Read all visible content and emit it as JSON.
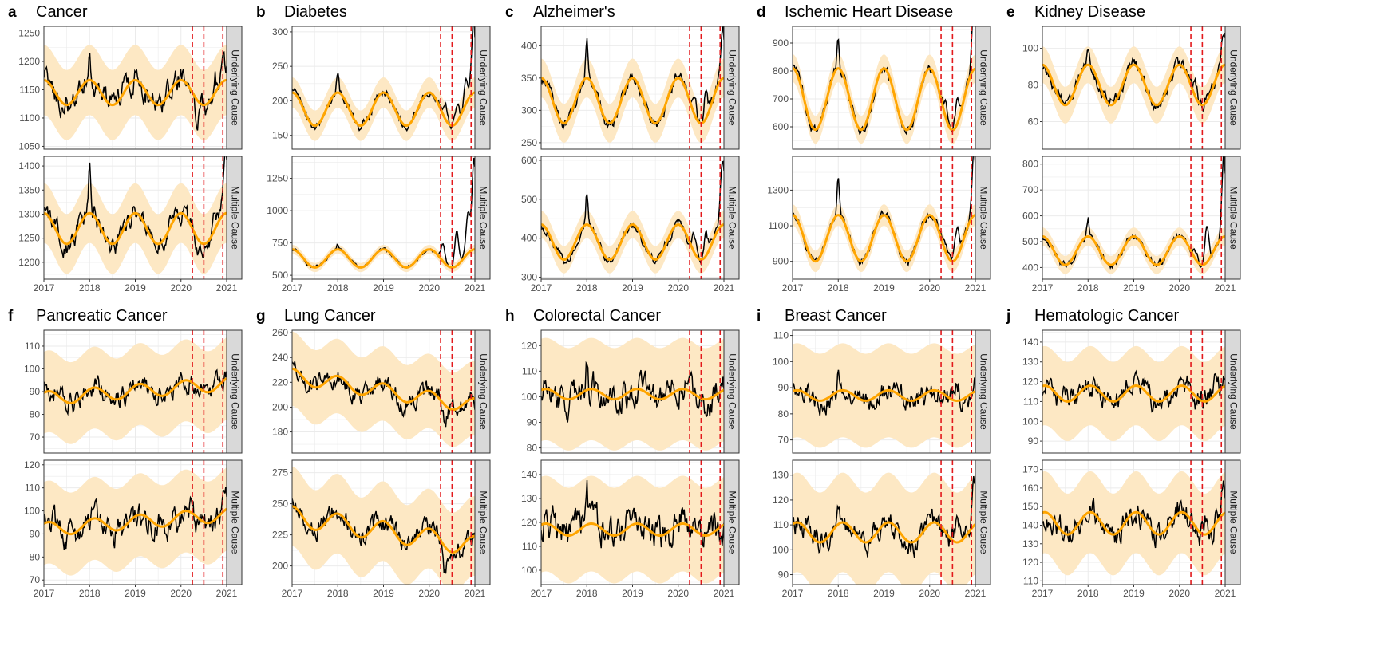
{
  "chart_data": {
    "type": "line",
    "layout": "faceted grid: 2 rows of 5 panels, each panel has 2 stacked facets",
    "x_axis": {
      "ticks": [
        "2017",
        "2018",
        "2019",
        "2020",
        "2021"
      ],
      "range": [
        "2017-01",
        "2021-01"
      ]
    },
    "facets": [
      "Underlying Cause",
      "Multiple Cause"
    ],
    "pandemic_lines": [
      "2020-04",
      "2020-07",
      "2020-12"
    ],
    "colors": {
      "observed": "#000000",
      "expected": "#ffa500",
      "prediction_band": "#fde8c4",
      "vlines": "#e3191c",
      "strip": "#d9d9d9",
      "grid": "#ebebeb"
    },
    "series_descriptions": {
      "observed": "weekly observed deaths (black line)",
      "expected": "expected seasonal baseline (orange line)",
      "band": "prediction interval (light orange band)"
    },
    "panels": [
      {
        "letter": "a",
        "title": "Cancer",
        "facets": [
          {
            "label": "Underlying Cause",
            "yticks": [
              1050,
              1100,
              1150,
              1200,
              1250
            ],
            "ylim": [
              1045,
              1262
            ],
            "base": 1145,
            "trend": 0,
            "amp": 22,
            "phase": 0.1,
            "band": 62,
            "noise": 18,
            "spikes": [
              [
                2018.0,
                75
              ]
            ],
            "pandemic": [
              [
                2020.35,
                -45
              ],
              [
                2020.75,
                20
              ],
              [
                2020.95,
                30
              ]
            ]
          },
          {
            "label": "Multiple Cause",
            "yticks": [
              1200,
              1250,
              1300,
              1350,
              1400
            ],
            "ylim": [
              1165,
              1420
            ],
            "base": 1270,
            "trend": 0,
            "amp": 32,
            "phase": 0.1,
            "band": 62,
            "noise": 18,
            "spikes": [
              [
                2018.0,
                90
              ]
            ],
            "pandemic": [
              [
                2020.4,
                -30
              ],
              [
                2020.75,
                35
              ],
              [
                2020.97,
                130
              ]
            ]
          }
        ]
      },
      {
        "letter": "b",
        "title": "Diabetes",
        "facets": [
          {
            "label": "Underlying Cause",
            "yticks": [
              150,
              200,
              250,
              300
            ],
            "ylim": [
              130,
              308
            ],
            "base": 188,
            "trend": 0,
            "amp": 24,
            "phase": 0.1,
            "band": 22,
            "noise": 5,
            "spikes": [
              [
                2018.0,
                30
              ]
            ],
            "pandemic": [
              [
                2020.35,
                25
              ],
              [
                2020.6,
                25
              ],
              [
                2020.8,
                35
              ],
              [
                2020.97,
                110
              ]
            ]
          },
          {
            "label": "Multiple Cause",
            "yticks": [
              500,
              750,
              1000,
              1250
            ],
            "ylim": [
              470,
              1420
            ],
            "base": 630,
            "trend": 0,
            "amp": 70,
            "phase": 0.1,
            "band": 35,
            "noise": 10,
            "spikes": [
              [
                2018.0,
                40
              ]
            ],
            "pandemic": [
              [
                2020.3,
                120
              ],
              [
                2020.6,
                260
              ],
              [
                2020.85,
                300
              ],
              [
                2020.98,
                700
              ]
            ]
          }
        ]
      },
      {
        "letter": "c",
        "title": "Alzheimer's",
        "facets": [
          {
            "label": "Underlying Cause",
            "yticks": [
              250,
              300,
              350,
              400
            ],
            "ylim": [
              240,
              430
            ],
            "base": 315,
            "trend": 0,
            "amp": 35,
            "phase": 0.1,
            "band": 30,
            "noise": 8,
            "spikes": [
              [
                2018.0,
                60
              ]
            ],
            "pandemic": [
              [
                2020.35,
                40
              ],
              [
                2020.6,
                45
              ],
              [
                2020.97,
                75
              ]
            ]
          },
          {
            "label": "Multiple Cause",
            "yticks": [
              300,
              400,
              500,
              600
            ],
            "ylim": [
              295,
              610
            ],
            "base": 390,
            "trend": 0,
            "amp": 45,
            "phase": 0.1,
            "band": 35,
            "noise": 10,
            "spikes": [
              [
                2018.0,
                80
              ]
            ],
            "pandemic": [
              [
                2020.35,
                45
              ],
              [
                2020.6,
                60
              ],
              [
                2020.97,
                170
              ]
            ]
          }
        ]
      },
      {
        "letter": "d",
        "title": "Ischemic Heart Disease",
        "facets": [
          {
            "label": "Underlying Cause",
            "yticks": [
              600,
              700,
              800,
              900
            ],
            "ylim": [
              520,
              960
            ],
            "base": 700,
            "trend": -0.5,
            "amp": 110,
            "phase": 0.1,
            "band": 50,
            "noise": 15,
            "spikes": [
              [
                2018.0,
                120
              ]
            ],
            "pandemic": [
              [
                2020.35,
                40
              ],
              [
                2020.6,
                100
              ],
              [
                2020.97,
                230
              ]
            ]
          },
          {
            "label": "Multiple Cause",
            "yticks": [
              900,
              1100,
              1300
            ],
            "ylim": [
              800,
              1490
            ],
            "base": 1030,
            "trend": 0,
            "amp": 130,
            "phase": 0.1,
            "band": 60,
            "noise": 18,
            "spikes": [
              [
                2018.0,
                190
              ]
            ],
            "pandemic": [
              [
                2020.35,
                45
              ],
              [
                2020.6,
                150
              ],
              [
                2020.97,
                370
              ]
            ]
          }
        ]
      },
      {
        "letter": "e",
        "title": "Kidney Disease",
        "facets": [
          {
            "label": "Underlying Cause",
            "yticks": [
              60,
              80,
              100
            ],
            "ylim": [
              45,
              112
            ],
            "base": 80,
            "trend": 0,
            "amp": 11,
            "phase": 0.1,
            "band": 10,
            "noise": 3,
            "spikes": [
              [
                2018.0,
                10
              ]
            ],
            "pandemic": [
              [
                2020.35,
                6
              ],
              [
                2020.6,
                6
              ],
              [
                2020.97,
                18
              ]
            ]
          },
          {
            "label": "Multiple Cause",
            "yticks": [
              400,
              500,
              600,
              700,
              800
            ],
            "ylim": [
              355,
              830
            ],
            "base": 465,
            "trend": 0,
            "amp": 55,
            "phase": 0.1,
            "band": 35,
            "noise": 12,
            "spikes": [
              [
                2018.0,
                70
              ]
            ],
            "pandemic": [
              [
                2020.35,
                40
              ],
              [
                2020.6,
                130
              ],
              [
                2020.97,
                330
              ]
            ]
          }
        ]
      },
      {
        "letter": "f",
        "title": "Pancreatic Cancer",
        "facets": [
          {
            "label": "Underlying Cause",
            "yticks": [
              70,
              80,
              90,
              100,
              110
            ],
            "ylim": [
              63,
              117
            ],
            "base": 87,
            "trend": 1.6,
            "amp": 3,
            "phase": 0.2,
            "band": 18,
            "noise": 4,
            "spikes": [],
            "pandemic": [
              [
                2020.35,
                -5
              ],
              [
                2020.8,
                4
              ]
            ]
          },
          {
            "label": "Multiple Cause",
            "yticks": [
              70,
              80,
              90,
              100,
              110,
              120
            ],
            "ylim": [
              68,
              122
            ],
            "base": 92,
            "trend": 1.6,
            "amp": 3,
            "phase": 0.2,
            "band": 18,
            "noise": 5,
            "spikes": [],
            "pandemic": [
              [
                2020.35,
                -5
              ],
              [
                2020.95,
                6
              ]
            ]
          }
        ]
      },
      {
        "letter": "g",
        "title": "Lung Cancer",
        "facets": [
          {
            "label": "Underlying Cause",
            "yticks": [
              180,
              200,
              220,
              240,
              260
            ],
            "ylim": [
              163,
              262
            ],
            "base": 225,
            "trend": -6,
            "amp": 6,
            "phase": 0.1,
            "band": 30,
            "noise": 7,
            "spikes": [],
            "pandemic": [
              [
                2020.35,
                -15
              ]
            ]
          },
          {
            "label": "Multiple Cause",
            "yticks": [
              200,
              225,
              250,
              275
            ],
            "ylim": [
              185,
              285
            ],
            "base": 240,
            "trend": -6,
            "amp": 8,
            "phase": 0.1,
            "band": 32,
            "noise": 7,
            "spikes": [],
            "pandemic": [
              [
                2020.35,
                -18
              ]
            ]
          }
        ]
      },
      {
        "letter": "h",
        "title": "Colorectal Cancer",
        "facets": [
          {
            "label": "Underlying Cause",
            "yticks": [
              80,
              90,
              100,
              110,
              120
            ],
            "ylim": [
              78,
              126
            ],
            "base": 101,
            "trend": 0,
            "amp": 2,
            "phase": 0.2,
            "band": 20,
            "noise": 5,
            "spikes": [
              [
                2018.0,
                15
              ]
            ],
            "pandemic": []
          },
          {
            "label": "Multiple Cause",
            "yticks": [
              100,
              110,
              120,
              130,
              140
            ],
            "ylim": [
              94,
              146
            ],
            "base": 117,
            "trend": 0,
            "amp": 2.5,
            "phase": 0.2,
            "band": 20,
            "noise": 6,
            "spikes": [
              [
                2018.0,
                18
              ]
            ],
            "pandemic": []
          }
        ]
      },
      {
        "letter": "i",
        "title": "Breast Cancer",
        "facets": [
          {
            "label": "Underlying Cause",
            "yticks": [
              70,
              80,
              90,
              100,
              110
            ],
            "ylim": [
              65,
              112
            ],
            "base": 87,
            "trend": 0,
            "amp": 2,
            "phase": 0.2,
            "band": 18,
            "noise": 3.5,
            "spikes": [
              [
                2018.0,
                10
              ]
            ],
            "pandemic": [
              [
                2020.6,
                8
              ],
              [
                2020.97,
                7
              ]
            ]
          },
          {
            "label": "Multiple Cause",
            "yticks": [
              90,
              100,
              110,
              120,
              130
            ],
            "ylim": [
              86,
              136
            ],
            "base": 107,
            "trend": 0,
            "amp": 4,
            "phase": 0.2,
            "band": 20,
            "noise": 4,
            "spikes": [
              [
                2018.0,
                12
              ]
            ],
            "pandemic": [
              [
                2020.6,
                12
              ],
              [
                2020.97,
                16
              ]
            ]
          }
        ]
      },
      {
        "letter": "j",
        "title": "Hematologic Cancer",
        "facets": [
          {
            "label": "Underlying Cause",
            "yticks": [
              90,
              100,
              110,
              120,
              130,
              140
            ],
            "ylim": [
              84,
              146
            ],
            "base": 114,
            "trend": 0,
            "amp": 4,
            "phase": 0.15,
            "band": 20,
            "noise": 5,
            "spikes": [],
            "pandemic": [
              [
                2020.35,
                -5
              ],
              [
                2020.8,
                4
              ]
            ]
          },
          {
            "label": "Multiple Cause",
            "yticks": [
              110,
              120,
              130,
              140,
              150,
              160,
              170
            ],
            "ylim": [
              108,
              175
            ],
            "base": 141,
            "trend": 0,
            "amp": 6,
            "phase": 0.15,
            "band": 22,
            "noise": 6,
            "spikes": [],
            "pandemic": [
              [
                2020.6,
                10
              ],
              [
                2020.97,
                18
              ]
            ]
          }
        ]
      }
    ]
  }
}
